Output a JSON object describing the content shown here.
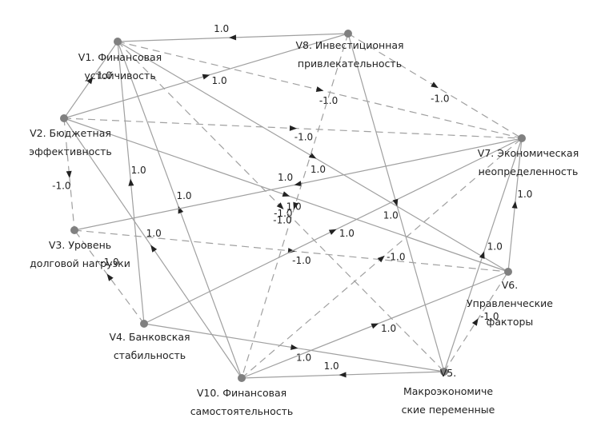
{
  "nodes": [
    {
      "label": "V1. Финансовая устойчивость"
    },
    {
      "label": "V2. Бюджетная эффективность"
    },
    {
      "label": "V3. Уровень долговой нагрузки"
    },
    {
      "label": "V4. Банковская стабильность"
    },
    {
      "label": "V5. Макроэкономические переменные"
    },
    {
      "label": "V6. Управленческие факторы"
    },
    {
      "label": "V7. Экономическая неопределенность"
    },
    {
      "label": "V8. Инвестиционная привлекательность"
    },
    {
      "label": "V10. Финансовая самостоятельность"
    }
  ],
  "edges": [
    {
      "label": "1.0"
    },
    {
      "label": "1.0"
    },
    {
      "label": "1.0"
    },
    {
      "label": "1.0"
    },
    {
      "label": "-1.0"
    },
    {
      "label": "-1.0"
    },
    {
      "label": "-1.0"
    },
    {
      "label": "-1.0"
    },
    {
      "label": "-1.0"
    },
    {
      "label": "1.0"
    },
    {
      "label": "1.0"
    },
    {
      "label": "1.0"
    },
    {
      "label": "1.0"
    },
    {
      "label": "-1.0"
    },
    {
      "label": "1.0"
    },
    {
      "label": "1.0"
    },
    {
      "label": "-1.0"
    },
    {
      "label": "1.0"
    },
    {
      "label": "1.0"
    },
    {
      "label": "1.0"
    },
    {
      "label": "-1.0"
    },
    {
      "label": "1.0"
    },
    {
      "label": "1.0"
    },
    {
      "label": "-1.0"
    },
    {
      "label": "1.0"
    },
    {
      "label": "-1.0"
    }
  ]
}
